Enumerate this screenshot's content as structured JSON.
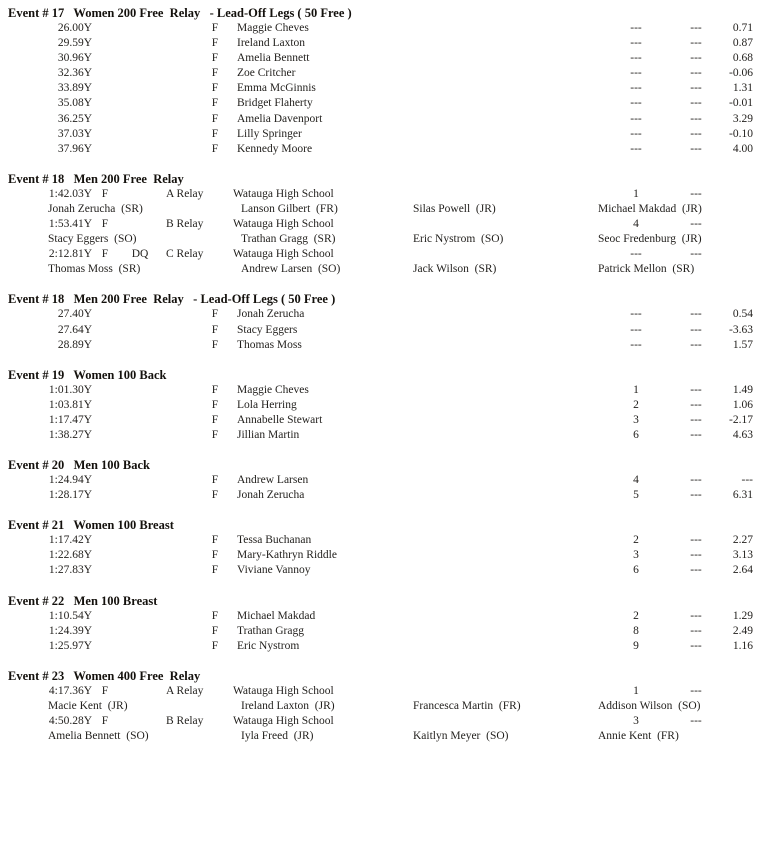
{
  "page": {
    "background": "#ffffff",
    "text_color": "#211f1c",
    "heading_color": "#14110d"
  },
  "events": [
    {
      "type": "individual",
      "title": "Event # 17   Women 200 Free  Relay   - Lead-Off Legs ( 50 Free )",
      "rows": [
        {
          "time": "26.00Y",
          "f": "F",
          "name": "Maggie Cheves",
          "place": "---",
          "seed": "---",
          "delta": "0.71"
        },
        {
          "time": "29.59Y",
          "f": "F",
          "name": "Ireland Laxton",
          "place": "---",
          "seed": "---",
          "delta": "0.87"
        },
        {
          "time": "30.96Y",
          "f": "F",
          "name": "Amelia Bennett",
          "place": "---",
          "seed": "---",
          "delta": "0.68"
        },
        {
          "time": "32.36Y",
          "f": "F",
          "name": "Zoe Critcher",
          "place": "---",
          "seed": "---",
          "delta": "-0.06"
        },
        {
          "time": "33.89Y",
          "f": "F",
          "name": "Emma McGinnis",
          "place": "---",
          "seed": "---",
          "delta": "1.31"
        },
        {
          "time": "35.08Y",
          "f": "F",
          "name": "Bridget Flaherty",
          "place": "---",
          "seed": "---",
          "delta": "-0.01"
        },
        {
          "time": "36.25Y",
          "f": "F",
          "name": "Amelia Davenport",
          "place": "---",
          "seed": "---",
          "delta": "3.29"
        },
        {
          "time": "37.03Y",
          "f": "F",
          "name": "Lilly Springer",
          "place": "---",
          "seed": "---",
          "delta": "-0.10"
        },
        {
          "time": "37.96Y",
          "f": "F",
          "name": "Kennedy Moore",
          "place": "---",
          "seed": "---",
          "delta": "4.00"
        }
      ]
    },
    {
      "type": "relay",
      "title": "Event # 18   Men 200 Free  Relay",
      "rows": [
        {
          "time": "1:42.03Y",
          "f": "F",
          "dq": "",
          "label": "A Relay",
          "school": "Watauga High School",
          "place": "1",
          "seed": "---",
          "delta": "",
          "swimmers": [
            "Jonah Zerucha  (SR)",
            "Lanson Gilbert  (FR)",
            "Silas Powell  (JR)",
            "Michael Makdad  (JR)"
          ]
        },
        {
          "time": "1:53.41Y",
          "f": "F",
          "dq": "",
          "label": "B Relay",
          "school": "Watauga High School",
          "place": "4",
          "seed": "---",
          "delta": "",
          "swimmers": [
            "Stacy Eggers  (SO)",
            "Trathan Gragg  (SR)",
            "Eric Nystrom  (SO)",
            "Seoc Fredenburg  (JR)"
          ]
        },
        {
          "time": "2:12.81Y",
          "f": "F",
          "dq": "DQ",
          "label": "C Relay",
          "school": "Watauga High School",
          "place": "---",
          "seed": "---",
          "delta": "",
          "swimmers": [
            "Thomas Moss  (SR)",
            "Andrew Larsen  (SO)",
            "Jack Wilson  (SR)",
            "Patrick Mellon  (SR)"
          ]
        }
      ]
    },
    {
      "type": "individual",
      "title": "Event # 18   Men 200 Free  Relay   - Lead-Off Legs ( 50 Free )",
      "rows": [
        {
          "time": "27.40Y",
          "f": "F",
          "name": "Jonah Zerucha",
          "place": "---",
          "seed": "---",
          "delta": "0.54"
        },
        {
          "time": "27.64Y",
          "f": "F",
          "name": "Stacy Eggers",
          "place": "---",
          "seed": "---",
          "delta": "-3.63"
        },
        {
          "time": "28.89Y",
          "f": "F",
          "name": "Thomas Moss",
          "place": "---",
          "seed": "---",
          "delta": "1.57"
        }
      ]
    },
    {
      "type": "individual",
      "title": "Event # 19   Women 100 Back",
      "rows": [
        {
          "time": "1:01.30Y",
          "f": "F",
          "name": "Maggie Cheves",
          "place": "1",
          "seed": "---",
          "delta": "1.49"
        },
        {
          "time": "1:03.81Y",
          "f": "F",
          "name": "Lola Herring",
          "place": "2",
          "seed": "---",
          "delta": "1.06"
        },
        {
          "time": "1:17.47Y",
          "f": "F",
          "name": "Annabelle Stewart",
          "place": "3",
          "seed": "---",
          "delta": "-2.17"
        },
        {
          "time": "1:38.27Y",
          "f": "F",
          "name": "Jillian Martin",
          "place": "6",
          "seed": "---",
          "delta": "4.63"
        }
      ]
    },
    {
      "type": "individual",
      "title": "Event # 20   Men 100 Back",
      "rows": [
        {
          "time": "1:24.94Y",
          "f": "F",
          "name": "Andrew Larsen",
          "place": "4",
          "seed": "---",
          "delta": "---"
        },
        {
          "time": "1:28.17Y",
          "f": "F",
          "name": "Jonah Zerucha",
          "place": "5",
          "seed": "---",
          "delta": "6.31"
        }
      ]
    },
    {
      "type": "individual",
      "title": "Event # 21   Women 100 Breast",
      "rows": [
        {
          "time": "1:17.42Y",
          "f": "F",
          "name": "Tessa Buchanan",
          "place": "2",
          "seed": "---",
          "delta": "2.27"
        },
        {
          "time": "1:22.68Y",
          "f": "F",
          "name": "Mary-Kathryn Riddle",
          "place": "3",
          "seed": "---",
          "delta": "3.13"
        },
        {
          "time": "1:27.83Y",
          "f": "F",
          "name": "Viviane Vannoy",
          "place": "6",
          "seed": "---",
          "delta": "2.64"
        }
      ]
    },
    {
      "type": "individual",
      "title": "Event # 22   Men 100 Breast",
      "rows": [
        {
          "time": "1:10.54Y",
          "f": "F",
          "name": "Michael Makdad",
          "place": "2",
          "seed": "---",
          "delta": "1.29"
        },
        {
          "time": "1:24.39Y",
          "f": "F",
          "name": "Trathan Gragg",
          "place": "8",
          "seed": "---",
          "delta": "2.49"
        },
        {
          "time": "1:25.97Y",
          "f": "F",
          "name": "Eric Nystrom",
          "place": "9",
          "seed": "---",
          "delta": "1.16"
        }
      ]
    },
    {
      "type": "relay",
      "title": "Event # 23   Women 400 Free  Relay",
      "rows": [
        {
          "time": "4:17.36Y",
          "f": "F",
          "dq": "",
          "label": "A Relay",
          "school": "Watauga High School",
          "place": "1",
          "seed": "---",
          "delta": "",
          "swimmers": [
            "Macie Kent  (JR)",
            "Ireland Laxton  (JR)",
            "Francesca Martin  (FR)",
            "Addison Wilson  (SO)"
          ]
        },
        {
          "time": "4:50.28Y",
          "f": "F",
          "dq": "",
          "label": "B Relay",
          "school": "Watauga High School",
          "place": "3",
          "seed": "---",
          "delta": "",
          "swimmers": [
            "Amelia Bennett  (SO)",
            "Iyla Freed  (JR)",
            "Kaitlyn Meyer  (SO)",
            "Annie Kent  (FR)"
          ]
        }
      ]
    }
  ]
}
